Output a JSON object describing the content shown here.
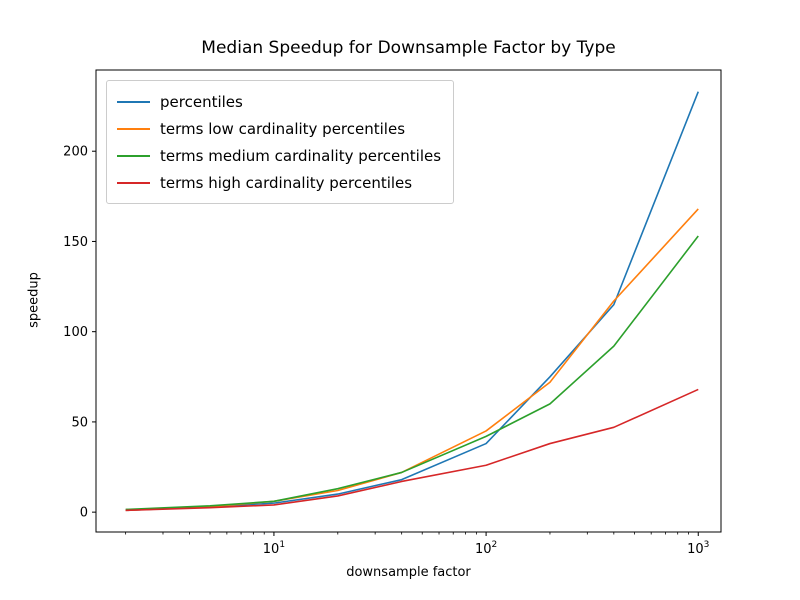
{
  "figure": {
    "background": "#ffffff"
  },
  "chart_data": {
    "type": "line",
    "title": "Median Speedup for Downsample Factor by Type",
    "xlabel": "downsample factor",
    "ylabel": "speedup",
    "x_scale": "log",
    "grid": false,
    "legend_position": "upper left",
    "x": [
      2,
      5,
      10,
      20,
      40,
      100,
      200,
      400,
      1000
    ],
    "series": [
      {
        "name": "percentiles",
        "color": "#1f77b4",
        "values": [
          1,
          3,
          5,
          10,
          18,
          38,
          75,
          115,
          233
        ]
      },
      {
        "name": "terms low cardinality percentiles",
        "color": "#ff7f0e",
        "values": [
          1,
          3,
          6,
          12,
          22,
          45,
          72,
          117,
          168
        ]
      },
      {
        "name": "terms medium cardinality percentiles",
        "color": "#2ca02c",
        "values": [
          1.5,
          3.5,
          6,
          13,
          22,
          42,
          60,
          92,
          153
        ]
      },
      {
        "name": "terms high cardinality percentiles",
        "color": "#d62728",
        "values": [
          1,
          2.5,
          4,
          9,
          17,
          26,
          38,
          47,
          68
        ]
      }
    ],
    "xlim": [
      1.45,
      1280
    ],
    "ylim": [
      -11,
      245
    ],
    "y_ticks": [
      0,
      50,
      100,
      150,
      200
    ],
    "x_ticks": [
      10,
      100,
      1000
    ]
  }
}
